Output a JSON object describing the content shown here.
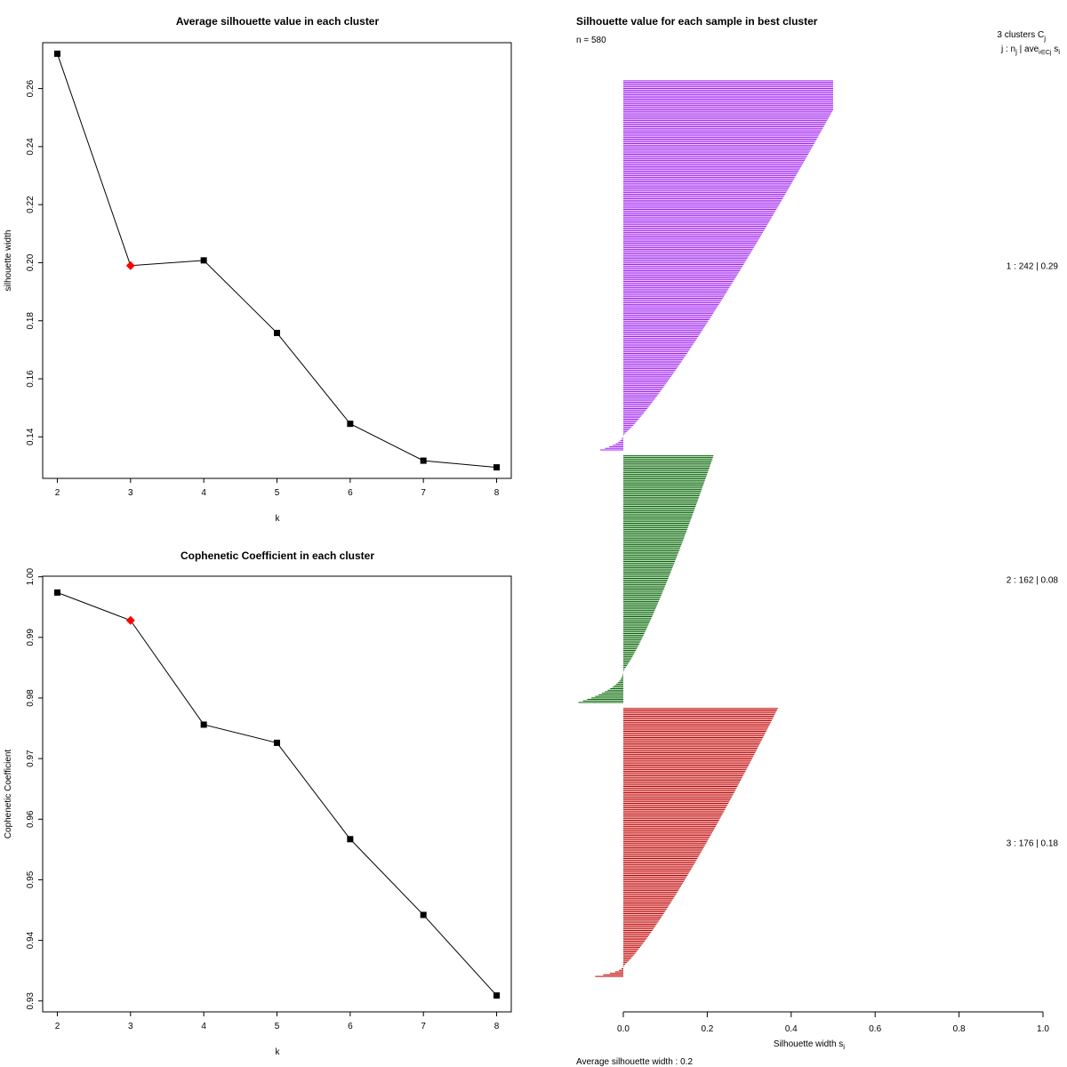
{
  "chart_data": [
    {
      "type": "line",
      "title": "Average silhouette value in each cluster",
      "xlabel": "k",
      "ylabel": "silhouette width",
      "x": [
        2,
        3,
        4,
        5,
        6,
        7,
        8
      ],
      "values": [
        0.272,
        0.199,
        0.2008,
        0.1758,
        0.1445,
        0.1318,
        0.1295
      ],
      "highlight_k": 3,
      "highlight_color": "#ff0000",
      "xticks": [
        "2",
        "3",
        "4",
        "5",
        "6",
        "7",
        "8"
      ],
      "yticks": [
        "0.14",
        "0.16",
        "0.18",
        "0.20",
        "0.22",
        "0.24",
        "0.26"
      ],
      "xlim": [
        1.8,
        8.2
      ],
      "ylim": [
        0.1257,
        0.2758
      ]
    },
    {
      "type": "line",
      "title": "Cophenetic Coefficient in each cluster",
      "xlabel": "k",
      "ylabel": "Cophenetic Coefficient",
      "x": [
        2,
        3,
        4,
        5,
        6,
        7,
        8
      ],
      "values": [
        0.9974,
        0.9928,
        0.9756,
        0.9726,
        0.9567,
        0.9442,
        0.9309
      ],
      "highlight_k": 3,
      "highlight_color": "#ff0000",
      "xticks": [
        "2",
        "3",
        "4",
        "5",
        "6",
        "7",
        "8"
      ],
      "yticks": [
        "0.93",
        "0.94",
        "0.95",
        "0.96",
        "0.97",
        "0.98",
        "0.99",
        "1.00"
      ],
      "xlim": [
        1.8,
        8.2
      ],
      "ylim": [
        0.9282,
        1.0001
      ]
    },
    {
      "type": "bar",
      "orientation": "horizontal",
      "title": "Silhouette value for each sample in best cluster",
      "n_label": "n = 580",
      "xlabel": "Silhouette width s",
      "xlabel_sub": "i",
      "xticks": [
        "0.0",
        "0.2",
        "0.4",
        "0.6",
        "0.8",
        "1.0"
      ],
      "xlim": [
        0,
        1
      ],
      "legend_header": "3  clusters  C",
      "legend_header_sub": "j",
      "legend_row2": "j :  n",
      "legend_row2_sub1": "j",
      "legend_row2_mid": " | ave",
      "legend_row2_sub2": "i∈Cj",
      "legend_row2_end": "  s",
      "legend_row2_sub3": "i",
      "footer": "Average silhouette width :  0.2",
      "clusters": [
        {
          "label": "1 :   242  |  0.29",
          "n": 242,
          "avg": 0.29,
          "max": 0.5,
          "min": -0.055,
          "color": "#a020f0"
        },
        {
          "label": "2 :   162  |  0.08",
          "n": 162,
          "avg": 0.08,
          "max": 0.26,
          "min": -0.107,
          "color": "#006400"
        },
        {
          "label": "3 :   176  |  0.18",
          "n": 176,
          "avg": 0.18,
          "max": 0.4,
          "min": -0.067,
          "color": "#c00000"
        }
      ]
    }
  ]
}
